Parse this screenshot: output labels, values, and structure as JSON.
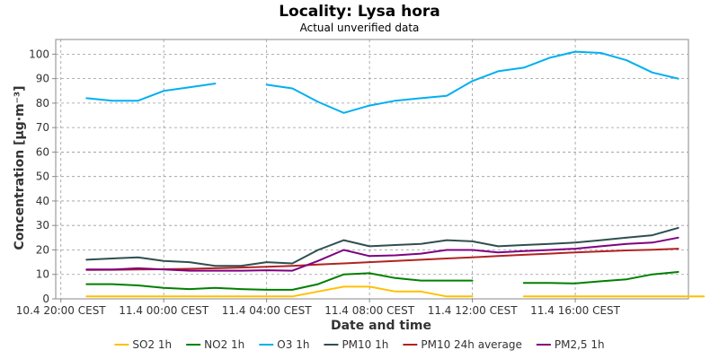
{
  "chart_data": {
    "type": "line",
    "title": "Locality: Lysa hora",
    "subtitle": "Actual unverified data",
    "xlabel": "Date and time",
    "ylabel": "Concentration [µg·m⁻³]",
    "x": [
      0,
      1,
      2,
      3,
      4,
      5,
      6,
      7,
      8,
      9,
      10,
      11,
      12,
      13,
      14,
      15,
      16,
      17,
      18,
      19,
      20,
      21,
      22,
      23,
      24
    ],
    "xlim": [
      -1.2,
      23.4
    ],
    "ylim": [
      0,
      106
    ],
    "xticks": [
      {
        "x": -1,
        "label": "10.4 20:00 CEST"
      },
      {
        "x": 3,
        "label": "11.4 00:00 CEST"
      },
      {
        "x": 7,
        "label": "11.4 04:00 CEST"
      },
      {
        "x": 11,
        "label": "11.4 08:00 CEST"
      },
      {
        "x": 15,
        "label": "11.4 12:00 CEST"
      },
      {
        "x": 19,
        "label": "11.4 16:00 CEST"
      }
    ],
    "yticks": [
      0,
      10,
      20,
      30,
      40,
      50,
      60,
      70,
      80,
      90,
      100
    ],
    "grid": true,
    "legend_position": "bottom",
    "series": [
      {
        "name": "SO2 1h",
        "color": "#ffc000",
        "values": [
          1,
          1,
          1,
          1,
          1,
          1,
          1,
          1,
          1,
          3,
          5,
          5,
          3,
          3,
          1,
          1,
          null,
          1,
          1,
          1,
          1,
          1,
          1,
          1,
          1
        ]
      },
      {
        "name": "NO2 1h",
        "color": "#008000",
        "values": [
          6,
          6,
          5.5,
          4.5,
          4,
          4.5,
          4,
          3.7,
          3.7,
          6,
          10,
          10.5,
          8.5,
          7.5,
          7.5,
          7.5,
          null,
          6.5,
          6.5,
          6.3,
          7.2,
          8,
          10,
          11,
          null
        ]
      },
      {
        "name": "O3 1h",
        "color": "#00b0f0",
        "values": [
          82,
          81,
          81,
          85,
          86.5,
          88,
          null,
          87.5,
          86,
          80.5,
          76,
          79,
          81,
          82,
          83,
          89,
          93,
          94.5,
          98.5,
          101,
          100.5,
          97.5,
          92.5,
          90,
          null
        ]
      },
      {
        "name": "PM10 1h",
        "color": "#2f4f4f",
        "values": [
          16,
          16.5,
          17,
          15.5,
          15,
          13.5,
          13.5,
          15,
          14.5,
          20,
          24,
          21.5,
          22,
          22.5,
          24,
          23.5,
          21.5,
          22,
          22.5,
          23,
          24,
          25,
          26,
          29,
          null
        ]
      },
      {
        "name": "PM10 24h average",
        "color": "#b22222",
        "values": [
          11.8,
          11.9,
          12,
          12.1,
          12.3,
          12.5,
          12.8,
          13.1,
          13.5,
          14,
          14.5,
          15,
          15.5,
          16,
          16.5,
          17,
          17.5,
          18,
          18.5,
          19,
          19.4,
          19.8,
          20.1,
          20.5,
          null
        ]
      },
      {
        "name": "PM2,5 1h",
        "color": "#800080",
        "values": [
          12,
          12,
          12.5,
          12,
          11.5,
          11.5,
          11.5,
          11.7,
          11.5,
          15.5,
          20,
          17.5,
          17.8,
          18.5,
          20,
          20,
          19,
          19.5,
          20,
          20.5,
          21.5,
          22.5,
          23,
          25,
          null
        ]
      }
    ]
  }
}
